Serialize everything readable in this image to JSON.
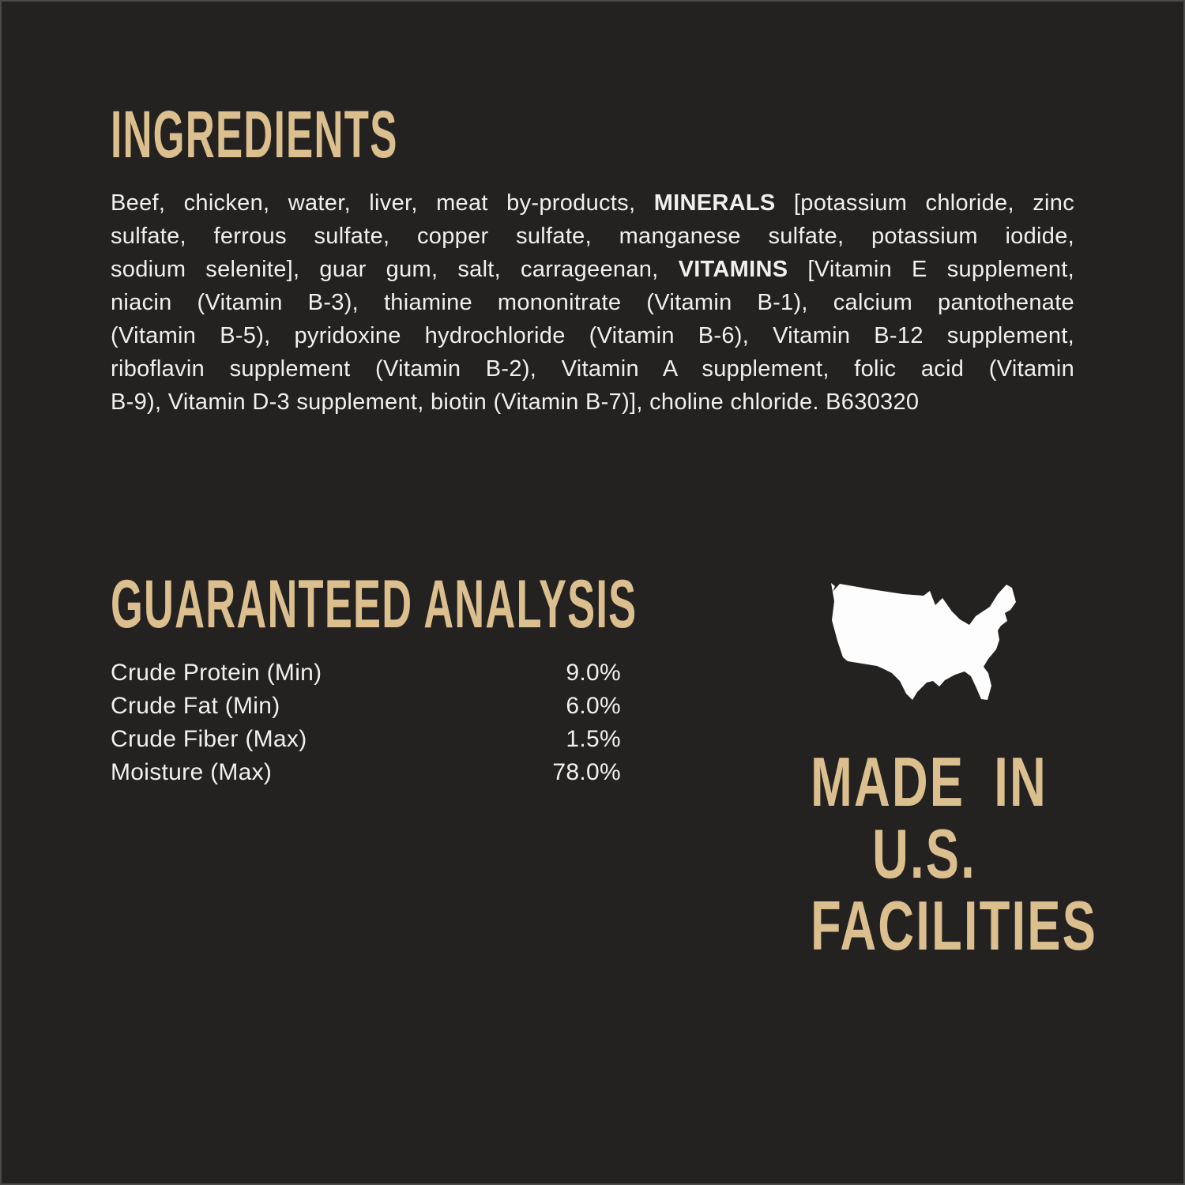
{
  "colors": {
    "background": "#242221",
    "accent_gold": "#dbbf8e",
    "text_white": "#f2f0ee",
    "map_white": "#fdfdfd"
  },
  "ingredients": {
    "title": "INGREDIENTS",
    "lines": [
      [
        {
          "t": "Beef, chicken, water, liver, meat by-products, "
        },
        {
          "t": "MINERALS",
          "b": true
        },
        {
          "t": " [potassium chloride, zinc"
        }
      ],
      [
        {
          "t": "sulfate, ferrous sulfate, copper sulfate, manganese sulfate, potassium iodide,"
        }
      ],
      [
        {
          "t": "sodium selenite], guar gum, salt, carrageenan, "
        },
        {
          "t": "VITAMINS",
          "b": true
        },
        {
          "t": " [Vitamin E supplement,"
        }
      ],
      [
        {
          "t": "niacin (Vitamin B-3), thiamine mononitrate (Vitamin B-1), calcium pantothenate"
        }
      ],
      [
        {
          "t": "(Vitamin B-5), pyridoxine hydrochloride (Vitamin B-6), Vitamin B-12 supplement,"
        }
      ],
      [
        {
          "t": "riboflavin supplement (Vitamin B-2), Vitamin A supplement, folic acid (Vitamin"
        }
      ],
      [
        {
          "t": "B-9), Vitamin D-3 supplement, biotin (Vitamin B-7)], choline chloride. B630320"
        }
      ]
    ]
  },
  "guaranteed_analysis": {
    "title": "GUARANTEED ANALYSIS",
    "rows": [
      {
        "label": "Crude Protein (Min)",
        "value": "9.0%"
      },
      {
        "label": "Crude Fat (Min)",
        "value": "6.0%"
      },
      {
        "label": "Crude Fiber (Max)",
        "value": "1.5%"
      },
      {
        "label": "Moisture (Max)",
        "value": "78.0%"
      }
    ]
  },
  "made_in": {
    "map_icon": "usa-map-silhouette",
    "line1": "MADE IN",
    "line2": "U.S.",
    "line3": "FACILITIES"
  }
}
